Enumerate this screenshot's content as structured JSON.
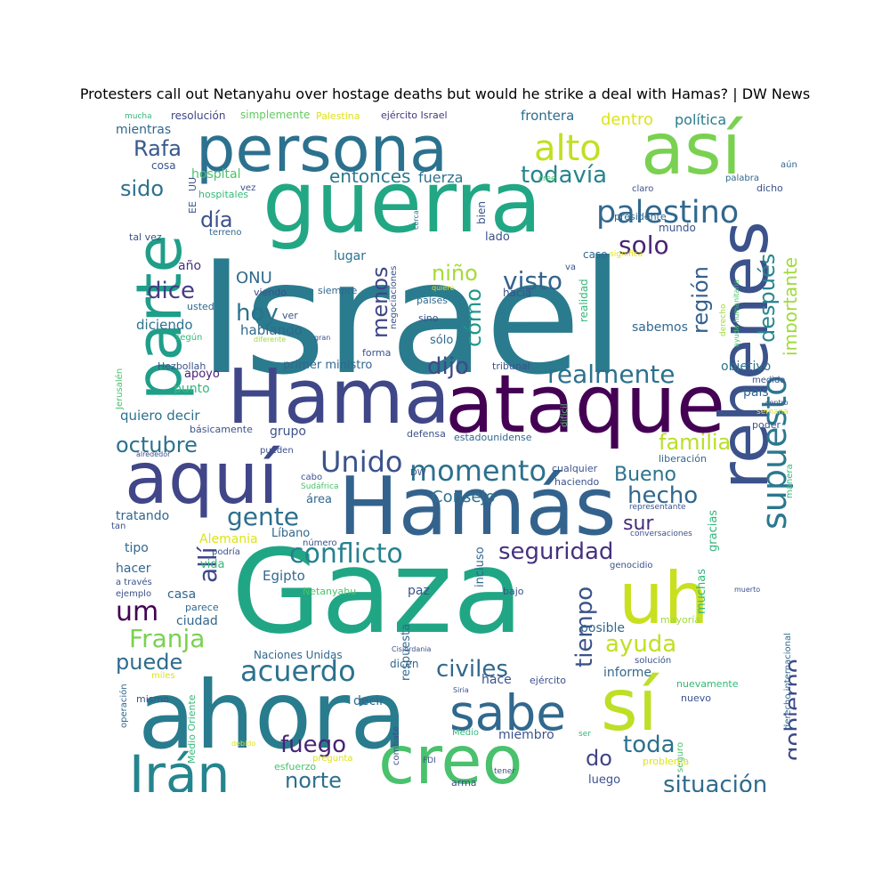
{
  "title": "Protesters call out Netanyahu over hostage deaths but would he strike a deal with Hamas? | DW News",
  "words": [
    {
      "text": "Israel",
      "color": "#2a7b8e"
    },
    {
      "text": "guerra",
      "color": "#22a784"
    },
    {
      "text": "persona",
      "color": "#2c718e"
    },
    {
      "text": "Gaza",
      "color": "#21a685"
    },
    {
      "text": "ataque",
      "color": "#440154"
    },
    {
      "text": "Hama",
      "color": "#3f4788"
    },
    {
      "text": "Hamás",
      "color": "#33638d"
    },
    {
      "text": "ahora",
      "color": "#287c8e"
    },
    {
      "text": "así",
      "color": "#7ad151"
    },
    {
      "text": "parte",
      "color": "#1f9e89"
    },
    {
      "text": "rehenes",
      "color": "#3b528b"
    },
    {
      "text": "aquí",
      "color": "#404688"
    },
    {
      "text": "sí",
      "color": "#bddf26"
    },
    {
      "text": "uh",
      "color": "#c8e020"
    },
    {
      "text": "creo",
      "color": "#4ac16d"
    },
    {
      "text": "sabe",
      "color": "#31688e"
    },
    {
      "text": "Irán",
      "color": "#25858e"
    },
    {
      "text": "palestino",
      "color": "#31688e"
    },
    {
      "text": "alto",
      "color": "#c2df23"
    },
    {
      "text": "momento",
      "color": "#2d708e"
    },
    {
      "text": "Unido",
      "color": "#3b528b"
    },
    {
      "text": "supuesto",
      "color": "#2a788e"
    },
    {
      "text": "acuerdo",
      "color": "#2c728e"
    },
    {
      "text": "conflicto",
      "color": "#26828e"
    },
    {
      "text": "seguridad",
      "color": "#46327e"
    },
    {
      "text": "todavía",
      "color": "#25848e"
    },
    {
      "text": "realmente",
      "color": "#2c718e"
    },
    {
      "text": "visto",
      "color": "#33638d"
    },
    {
      "text": "situación",
      "color": "#2f6c8e"
    },
    {
      "text": "civiles",
      "color": "#31688e"
    },
    {
      "text": "gobierno",
      "color": "#3e4989"
    },
    {
      "text": "Rafa",
      "color": "#38598c"
    },
    {
      "text": "niño",
      "color": "#a5db36"
    },
    {
      "text": "solo",
      "color": "#482475"
    },
    {
      "text": "región",
      "color": "#35608d"
    },
    {
      "text": "después",
      "color": "#25858e"
    },
    {
      "text": "importante",
      "color": "#a0da39"
    },
    {
      "text": "día",
      "color": "#3b528b"
    },
    {
      "text": "entonces",
      "color": "#2a788e"
    },
    {
      "text": "sido",
      "color": "#2c718e"
    },
    {
      "text": "dice",
      "color": "#433e85"
    },
    {
      "text": "hoy",
      "color": "#2c728e"
    },
    {
      "text": "menos",
      "color": "#404588"
    },
    {
      "text": "cómo",
      "color": "#1f988b"
    },
    {
      "text": "dijo",
      "color": "#3e4a89"
    },
    {
      "text": "octubre",
      "color": "#2c718e"
    },
    {
      "text": "familia",
      "color": "#bade28"
    },
    {
      "text": "Bueno",
      "color": "#2b748e"
    },
    {
      "text": "hecho",
      "color": "#31678e"
    },
    {
      "text": "gente",
      "color": "#2d708e"
    },
    {
      "text": "sur",
      "color": "#472c7a"
    },
    {
      "text": "allí",
      "color": "#3f4788"
    },
    {
      "text": "um",
      "color": "#440154"
    },
    {
      "text": "Franja",
      "color": "#7ad151"
    },
    {
      "text": "puede",
      "color": "#2f6c8e"
    },
    {
      "text": "tiempo",
      "color": "#3b528b"
    },
    {
      "text": "ayuda",
      "color": "#c2df23"
    },
    {
      "text": "fuego",
      "color": "#482475"
    },
    {
      "text": "norte",
      "color": "#2e6f8e"
    },
    {
      "text": "toda",
      "color": "#2c718e"
    },
    {
      "text": "do",
      "color": "#414487"
    },
    {
      "text": "ONU",
      "color": "#30698e"
    },
    {
      "text": "dentro",
      "color": "#dde318"
    },
    {
      "text": "política",
      "color": "#2a7b8e"
    },
    {
      "text": "frontera",
      "color": "#2f6c8e"
    },
    {
      "text": "hospital",
      "color": "#4ac16d"
    },
    {
      "text": "mientras",
      "color": "#31688e"
    },
    {
      "text": "cosa",
      "color": "#3a548c"
    },
    {
      "text": "resolución",
      "color": "#404688"
    },
    {
      "text": "simplemente",
      "color": "#63cb5f"
    },
    {
      "text": "Palestina",
      "color": "#dde318"
    },
    {
      "text": "ejército Israel",
      "color": "#453781"
    },
    {
      "text": "mucha",
      "color": "#35b779"
    },
    {
      "text": "aún",
      "color": "#31688e"
    },
    {
      "text": "dicho",
      "color": "#3b528b"
    },
    {
      "text": "palabra",
      "color": "#31688e"
    },
    {
      "text": "claro",
      "color": "#3b528b"
    },
    {
      "text": "cree",
      "color": "#4ac16d"
    },
    {
      "text": "fuerza",
      "color": "#2c728e"
    },
    {
      "text": "vez",
      "color": "#3b528b"
    },
    {
      "text": "hospitales",
      "color": "#35b779"
    },
    {
      "text": "EE",
      "color": "#3b528b"
    },
    {
      "text": "UU",
      "color": "#3b528b"
    },
    {
      "text": "terreno",
      "color": "#31688e"
    },
    {
      "text": "tal vez",
      "color": "#3b528b"
    },
    {
      "text": "año",
      "color": "#46327e"
    },
    {
      "text": "presidente",
      "color": "#31688e"
    },
    {
      "text": "mundo",
      "color": "#3b528b"
    },
    {
      "text": "lugar",
      "color": "#2c718e"
    },
    {
      "text": "bien",
      "color": "#3b528b"
    },
    {
      "text": "lado",
      "color": "#3b528b"
    },
    {
      "text": "cerca",
      "color": "#2c718e"
    },
    {
      "text": "caso",
      "color": "#31688e"
    },
    {
      "text": "significa",
      "color": "#dde318"
    },
    {
      "text": "va",
      "color": "#3b528b"
    },
    {
      "text": "viendo",
      "color": "#3b528b"
    },
    {
      "text": "siempre",
      "color": "#31688e"
    },
    {
      "text": "quiere",
      "color": "#dde318"
    },
    {
      "text": "usted",
      "color": "#31688e"
    },
    {
      "text": "países",
      "color": "#31688e"
    },
    {
      "text": "hacia",
      "color": "#3b528b"
    },
    {
      "text": "negociaciones",
      "color": "#3b528b"
    },
    {
      "text": "realidad",
      "color": "#35b779"
    },
    {
      "text": "sino",
      "color": "#3b528b"
    },
    {
      "text": "ver",
      "color": "#3b528b"
    },
    {
      "text": "derecho",
      "color": "#a0da39"
    },
    {
      "text": "ayuda humanitaria",
      "color": "#4ac16d"
    },
    {
      "text": "diciendo",
      "color": "#2c718e"
    },
    {
      "text": "hablando",
      "color": "#31688e"
    },
    {
      "text": "sabemos",
      "color": "#31688e"
    },
    {
      "text": "según",
      "color": "#35b779"
    },
    {
      "text": "diferente",
      "color": "#a0da39"
    },
    {
      "text": "gran",
      "color": "#3b528b"
    },
    {
      "text": "sólo",
      "color": "#31688e"
    },
    {
      "text": "forma",
      "color": "#3b528b"
    },
    {
      "text": "primer ministro",
      "color": "#31688e"
    },
    {
      "text": "Jerusalén",
      "color": "#4ac16d"
    },
    {
      "text": "Hezbollah",
      "color": "#3b528b"
    },
    {
      "text": "apoyo",
      "color": "#482475"
    },
    {
      "text": "punto",
      "color": "#35b779"
    },
    {
      "text": "tribunal",
      "color": "#3b528b"
    },
    {
      "text": "objetivo",
      "color": "#2c728e"
    },
    {
      "text": "medida",
      "color": "#3b528b"
    },
    {
      "text": "país",
      "color": "#31688e"
    },
    {
      "text": "centro",
      "color": "#3b528b"
    },
    {
      "text": "semana",
      "color": "#dde318"
    },
    {
      "text": "quiero decir",
      "color": "#2c718e"
    },
    {
      "text": "básicamente",
      "color": "#3b528b"
    },
    {
      "text": "grupo",
      "color": "#3b528b"
    },
    {
      "text": "difícil",
      "color": "#4ac16d"
    },
    {
      "text": "defensa",
      "color": "#3b528b"
    },
    {
      "text": "poder",
      "color": "#3b528b"
    },
    {
      "text": "estadounidense",
      "color": "#31688e"
    },
    {
      "text": "alrededor",
      "color": "#3b528b"
    },
    {
      "text": "pueden",
      "color": "#3b528b"
    },
    {
      "text": "liberación",
      "color": "#31688e"
    },
    {
      "text": "Consejo",
      "color": "#2c718e"
    },
    {
      "text": "cabo",
      "color": "#3b528b"
    },
    {
      "text": "DW",
      "color": "#3b528b"
    },
    {
      "text": "cualquier",
      "color": "#3b528b"
    },
    {
      "text": "haciendo",
      "color": "#3b528b"
    },
    {
      "text": "Sudáfrica",
      "color": "#4ac16d"
    },
    {
      "text": "manera",
      "color": "#35b779"
    },
    {
      "text": "área",
      "color": "#31688e"
    },
    {
      "text": "representante",
      "color": "#3b528b"
    },
    {
      "text": "gracias",
      "color": "#35b779"
    },
    {
      "text": "tratando",
      "color": "#31688e"
    },
    {
      "text": "Alemania",
      "color": "#dde318"
    },
    {
      "text": "Líbano",
      "color": "#31688e"
    },
    {
      "text": "conversaciones",
      "color": "#3b528b"
    },
    {
      "text": "tan",
      "color": "#3b528b"
    },
    {
      "text": "tipo",
      "color": "#31688e"
    },
    {
      "text": "número",
      "color": "#3b528b"
    },
    {
      "text": "podría",
      "color": "#3b528b"
    },
    {
      "text": "incluso",
      "color": "#31688e"
    },
    {
      "text": "genocidio",
      "color": "#3b528b"
    },
    {
      "text": "hacer",
      "color": "#31688e"
    },
    {
      "text": "vida",
      "color": "#35b779"
    },
    {
      "text": "Egipto",
      "color": "#31688e"
    },
    {
      "text": "a través",
      "color": "#3b528b"
    },
    {
      "text": "ejemplo",
      "color": "#3b528b"
    },
    {
      "text": "casa",
      "color": "#31688e"
    },
    {
      "text": "Netanyahu",
      "color": "#4ac16d"
    },
    {
      "text": "paz",
      "color": "#3b528b"
    },
    {
      "text": "bajo",
      "color": "#3b528b"
    },
    {
      "text": "muchas",
      "color": "#35b779"
    },
    {
      "text": "muerto",
      "color": "#3b528b"
    },
    {
      "text": "parece",
      "color": "#31688e"
    },
    {
      "text": "ciudad",
      "color": "#31688e"
    },
    {
      "text": "posible",
      "color": "#31688e"
    },
    {
      "text": "mayoría",
      "color": "#a0da39"
    },
    {
      "text": "respuesta",
      "color": "#31688e"
    },
    {
      "text": "derecho internacional",
      "color": "#31688e"
    },
    {
      "text": "Naciones Unidas",
      "color": "#31688e"
    },
    {
      "text": "Cisjordania",
      "color": "#3b528b"
    },
    {
      "text": "solución",
      "color": "#3b528b"
    },
    {
      "text": "dicen",
      "color": "#31688e"
    },
    {
      "text": "informe",
      "color": "#31688e"
    },
    {
      "text": "miles",
      "color": "#dde318"
    },
    {
      "text": "hace",
      "color": "#3b528b"
    },
    {
      "text": "ejército",
      "color": "#3b528b"
    },
    {
      "text": "nuevamente",
      "color": "#35b779"
    },
    {
      "text": "operación",
      "color": "#31688e"
    },
    {
      "text": "mismo",
      "color": "#3b528b"
    },
    {
      "text": "Siria",
      "color": "#3b528b"
    },
    {
      "text": "Medio Oriente",
      "color": "#35b779"
    },
    {
      "text": "decir",
      "color": "#31688e"
    },
    {
      "text": "nuevo",
      "color": "#3b528b"
    },
    {
      "text": "combate",
      "color": "#3b528b"
    },
    {
      "text": "Medio",
      "color": "#35b779"
    },
    {
      "text": "miembro",
      "color": "#3b528b"
    },
    {
      "text": "debido",
      "color": "#dde318"
    },
    {
      "text": "ser",
      "color": "#35b779"
    },
    {
      "text": "seguro",
      "color": "#4ac16d"
    },
    {
      "text": "problema",
      "color": "#dde318"
    },
    {
      "text": "FDI",
      "color": "#3b528b"
    },
    {
      "text": "esfuerzo",
      "color": "#4ac16d"
    },
    {
      "text": "tener",
      "color": "#3b528b"
    },
    {
      "text": "arma",
      "color": "#3b528b"
    },
    {
      "text": "luego",
      "color": "#3b528b"
    },
    {
      "text": "pregunta",
      "color": "#dde318"
    }
  ]
}
